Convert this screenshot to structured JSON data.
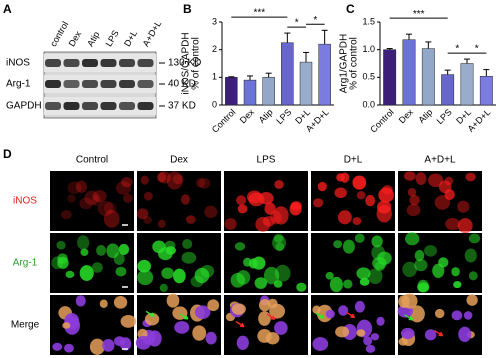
{
  "western_blot": {
    "panel": "A",
    "lanes": [
      "control",
      "Dex",
      "Atip",
      "LPS",
      "D+L",
      "A+D+L"
    ],
    "rows": [
      "iNOS",
      "Arg-1",
      "GAPDH"
    ],
    "sizes": [
      "130 KD",
      "40 KD",
      "37 KD"
    ]
  },
  "chart_data": [
    {
      "type": "bar",
      "panel": "B",
      "ylabel": [
        "iNOS/GAPDH",
        "% of control"
      ],
      "categories": [
        "Control",
        "Dex",
        "Atip",
        "LPS",
        "D+L",
        "A+D+L"
      ],
      "values": [
        1.0,
        0.9,
        1.0,
        2.25,
        1.55,
        2.2
      ],
      "errors": [
        0.02,
        0.15,
        0.15,
        0.35,
        0.35,
        0.5
      ],
      "colors": [
        "#3b1f78",
        "#6b72d8",
        "#93a8c9",
        "#6666cc",
        "#9aaccb",
        "#7b7be0"
      ],
      "ylim": [
        0,
        3
      ],
      "yticks": [
        0,
        1,
        2,
        3
      ],
      "annotations": [
        {
          "text": "***",
          "between": [
            "Control",
            "LPS"
          ]
        },
        {
          "text": "*",
          "between": [
            "LPS",
            "D+L"
          ]
        },
        {
          "text": "*",
          "between": [
            "D+L",
            "A+D+L"
          ]
        }
      ]
    },
    {
      "type": "bar",
      "panel": "C",
      "ylabel": [
        "Arg1/GAPDH",
        "% of control"
      ],
      "categories": [
        "Control",
        "Dex",
        "Atip",
        "LPS",
        "D+L",
        "A+D+L"
      ],
      "values": [
        1.0,
        1.18,
        1.02,
        0.55,
        0.75,
        0.52
      ],
      "errors": [
        0.02,
        0.1,
        0.12,
        0.08,
        0.08,
        0.12
      ],
      "colors": [
        "#3b1f78",
        "#6b72d8",
        "#93a8c9",
        "#6666cc",
        "#9aaccb",
        "#7b7be0"
      ],
      "ylim": [
        0,
        1.5
      ],
      "yticks": [
        {
          "value": 0,
          "label": "0.0"
        },
        0.5,
        {
          "value": 1,
          "label": "1.0"
        },
        1.5
      ],
      "annotations": [
        {
          "text": "***",
          "between": [
            "Control",
            "LPS"
          ]
        },
        {
          "text": "*",
          "between": [
            "LPS",
            "D+L"
          ]
        },
        {
          "text": "*",
          "between": [
            "D+L",
            "A+D+L"
          ]
        }
      ]
    }
  ],
  "microscopy": {
    "panel": "D",
    "columns": [
      "Control",
      "Dex",
      "LPS",
      "D+L",
      "A+D+L"
    ],
    "rows": [
      "iNOS",
      "Arg-1",
      "Merge"
    ]
  }
}
